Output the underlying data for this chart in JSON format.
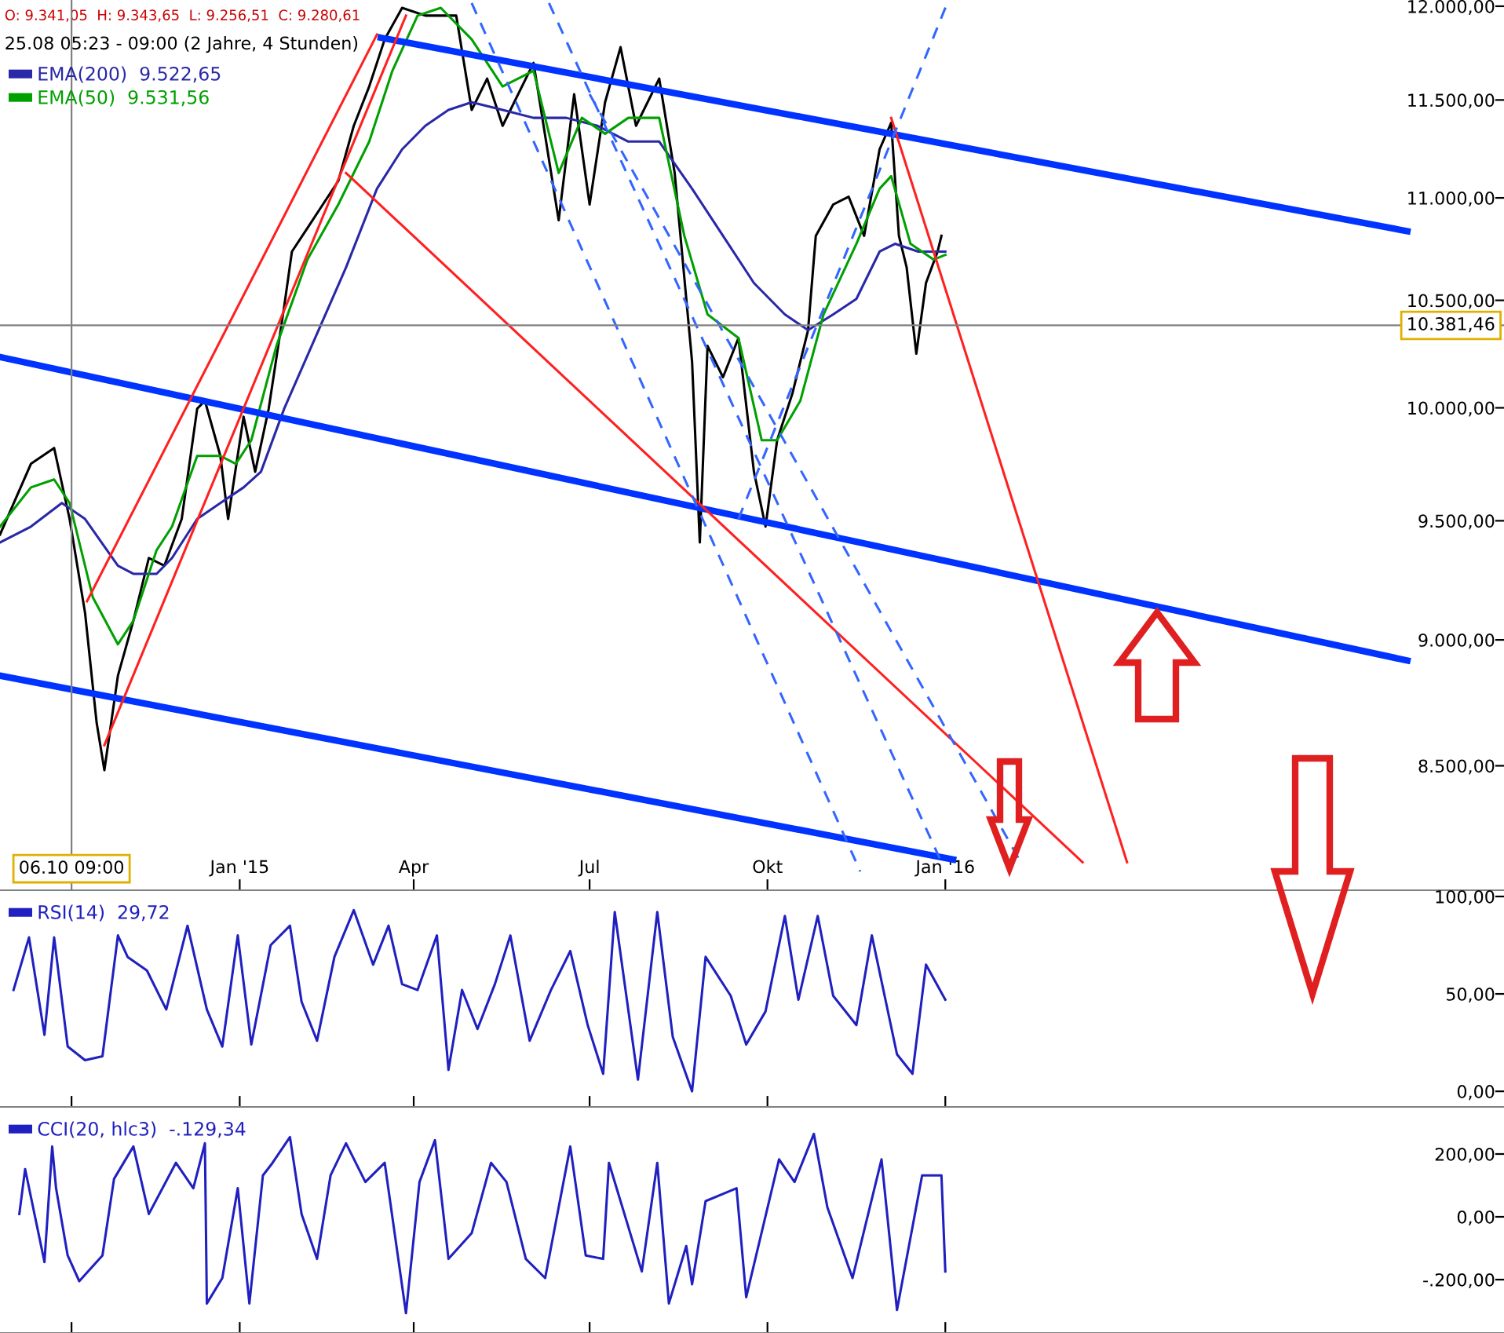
{
  "chart_data": [
    {
      "type": "line",
      "log": true,
      "grid": false,
      "legend": "top left",
      "annotations": [
        "O: 9.341,05  H: 9.343,65  L: 9.256,51  C: 9.280,61",
        "25.08 05:23 - 09:00 (2 Jahre, 4 Stunden)"
      ],
      "xlim": [
        "2014-08-30",
        "2016-10-16"
      ],
      "ylim": [
        8033,
        12034
      ],
      "xticks": [
        {
          "value": "2015-01-01",
          "label": "Jan '15"
        },
        {
          "value": "2015-04-01",
          "label": "Apr"
        },
        {
          "value": "2015-07-01",
          "label": "Jul"
        },
        {
          "value": "2015-10-01",
          "label": "Okt"
        },
        {
          "value": "2016-01-01",
          "label": "Jan '16"
        }
      ],
      "yticks": [
        {
          "value": 8500,
          "label": "8.500,00"
        },
        {
          "value": 9000,
          "label": "9.000,00"
        },
        {
          "value": 9500,
          "label": "9.500,00"
        },
        {
          "value": 10000,
          "label": "10.000,00"
        },
        {
          "value": 10500,
          "label": "10.500,00"
        },
        {
          "value": 11000,
          "label": "11.000,00"
        },
        {
          "value": 11500,
          "label": "11.500,00"
        },
        {
          "value": 12000,
          "label": "12.000,00"
        }
      ],
      "ref_lines": [
        {
          "axis": "y",
          "value": 10381.46,
          "label": "10.381,46",
          "color": "#808080"
        },
        {
          "axis": "x",
          "value": "2014-10-06",
          "label": "06.10 09:00",
          "color": "#808080"
        }
      ],
      "series": [
        {
          "color": "#000000",
          "x": [
            "2014-08-30",
            "2014-09-15",
            "2014-09-27",
            "2014-10-05",
            "2014-10-13",
            "2014-10-19",
            "2014-10-23",
            "2014-10-30",
            "2014-11-07",
            "2014-11-15",
            "2014-11-23",
            "2014-12-02",
            "2014-12-10",
            "2014-12-14",
            "2014-12-22",
            "2014-12-26",
            "2015-01-03",
            "2015-01-09",
            "2015-01-16",
            "2015-01-24",
            "2015-01-28",
            "2015-02-05",
            "2015-02-13",
            "2015-02-21",
            "2015-03-01",
            "2015-03-09",
            "2015-03-17",
            "2015-03-26",
            "2015-04-07",
            "2015-04-23",
            "2015-05-01",
            "2015-05-09",
            "2015-05-17",
            "2015-06-02",
            "2015-06-15",
            "2015-06-23",
            "2015-07-01",
            "2015-07-09",
            "2015-07-17",
            "2015-07-25",
            "2015-08-06",
            "2015-08-14",
            "2015-08-23",
            "2015-08-27",
            "2015-08-31",
            "2015-09-08",
            "2015-09-16",
            "2015-09-24",
            "2015-09-30",
            "2015-10-06",
            "2015-10-14",
            "2015-10-22",
            "2015-10-26",
            "2015-11-04",
            "2015-11-12",
            "2015-11-20",
            "2015-11-28",
            "2015-12-04",
            "2015-12-08",
            "2015-12-12",
            "2015-12-17",
            "2015-12-22",
            "2015-12-28",
            "2015-12-30"
          ],
          "values": [
            9441,
            9749,
            9819,
            9508,
            9111,
            8667,
            8483,
            8855,
            9079,
            9341,
            9308,
            9508,
            9996,
            10032,
            9784,
            9508,
            9960,
            9714,
            9996,
            10470,
            10735,
            10850,
            10967,
            11085,
            11366,
            11571,
            11821,
            11991,
            11949,
            11949,
            11448,
            11612,
            11366,
            11695,
            10889,
            11530,
            10967,
            11488,
            11779,
            11366,
            11612,
            11125,
            10212,
            9407,
            10285,
            10140,
            10322,
            9714,
            9475,
            9854,
            10068,
            10359,
            10812,
            10967,
            11006,
            10812,
            11245,
            11382,
            10812,
            10658,
            10249,
            10583,
            10735,
            10812
          ]
        },
        {
          "name": "EMA(200)  9.522,65",
          "color": "#2828a8",
          "x": [
            "2014-08-30",
            "2014-09-15",
            "2014-10-01",
            "2014-10-13",
            "2014-10-30",
            "2014-11-07",
            "2014-11-19",
            "2014-11-27",
            "2014-12-10",
            "2014-12-22",
            "2015-01-03",
            "2015-01-12",
            "2015-01-24",
            "2015-02-09",
            "2015-02-25",
            "2015-03-13",
            "2015-03-26",
            "2015-04-07",
            "2015-04-19",
            "2015-05-01",
            "2015-05-17",
            "2015-06-02",
            "2015-06-19",
            "2015-07-05",
            "2015-07-21",
            "2015-08-06",
            "2015-08-23",
            "2015-09-08",
            "2015-09-24",
            "2015-10-10",
            "2015-10-22",
            "2015-11-04",
            "2015-11-16",
            "2015-11-28",
            "2015-12-06",
            "2015-12-18",
            "2016-01-01"
          ],
          "values": [
            9407,
            9475,
            9577,
            9508,
            9308,
            9274,
            9274,
            9341,
            9508,
            9577,
            9645,
            9714,
            9996,
            10322,
            10658,
            11046,
            11245,
            11366,
            11448,
            11488,
            11448,
            11407,
            11407,
            11366,
            11285,
            11285,
            11046,
            10812,
            10583,
            10433,
            10359,
            10433,
            10507,
            10735,
            10773,
            10735,
            10735
          ]
        },
        {
          "name": "EMA(50)  9.531,56",
          "color": "#00a000",
          "x": [
            "2014-08-30",
            "2014-09-15",
            "2014-09-27",
            "2014-10-05",
            "2014-10-17",
            "2014-10-30",
            "2014-11-07",
            "2014-11-19",
            "2014-11-27",
            "2014-12-10",
            "2014-12-22",
            "2014-12-30",
            "2015-01-07",
            "2015-01-20",
            "2015-02-05",
            "2015-02-21",
            "2015-03-09",
            "2015-03-21",
            "2015-04-03",
            "2015-04-15",
            "2015-05-01",
            "2015-05-17",
            "2015-06-02",
            "2015-06-15",
            "2015-06-27",
            "2015-07-09",
            "2015-07-21",
            "2015-08-06",
            "2015-08-19",
            "2015-08-31",
            "2015-09-16",
            "2015-09-28",
            "2015-10-06",
            "2015-10-18",
            "2015-10-30",
            "2015-11-16",
            "2015-11-28",
            "2015-12-04",
            "2015-12-14",
            "2015-12-26",
            "2016-01-01"
          ],
          "values": [
            9475,
            9645,
            9680,
            9577,
            9176,
            8982,
            9079,
            9374,
            9475,
            9784,
            9784,
            9749,
            9854,
            10285,
            10696,
            10967,
            11285,
            11654,
            11949,
            11991,
            11821,
            11571,
            11654,
            11125,
            11407,
            11325,
            11407,
            11407,
            10812,
            10433,
            10322,
            9854,
            9854,
            10032,
            10433,
            10773,
            11046,
            11109,
            10773,
            10696,
            10719
          ]
        },
        {
          "color": "#0033ff",
          "x": [
            "2015-03-15",
            "2016-08-27"
          ],
          "values": [
            11830,
            10835
          ]
        },
        {
          "color": "#0033ff",
          "x": [
            "2014-08-30",
            "2016-08-27"
          ],
          "values": [
            10233,
            8916
          ]
        },
        {
          "color": "#0033ff",
          "x": [
            "2014-08-30",
            "2016-01-05"
          ],
          "values": [
            8855,
            8146
          ]
        },
        {
          "color": "#ff2020",
          "x": [
            "2014-10-23",
            "2015-03-28"
          ],
          "values": [
            8580,
            11949
          ]
        },
        {
          "color": "#ff2020",
          "x": [
            "2014-10-14",
            "2015-03-13"
          ],
          "values": [
            9159,
            11847
          ]
        },
        {
          "color": "#ff2020",
          "x": [
            "2015-02-25",
            "2016-03-12"
          ],
          "values": [
            11125,
            8136
          ]
        },
        {
          "color": "#ff2020",
          "x": [
            "2015-12-04",
            "2016-04-04"
          ],
          "values": [
            11407,
            8136
          ]
        },
        {
          "color": "#3366ff",
          "line_style": "dashed",
          "x": [
            "2015-05-01",
            "2015-11-18"
          ],
          "values": [
            12017,
            8102
          ]
        },
        {
          "color": "#3366ff",
          "line_style": "dashed",
          "x": [
            "2015-06-10",
            "2015-12-30"
          ],
          "values": [
            12017,
            8136
          ]
        },
        {
          "color": "#3366ff",
          "line_style": "dashed",
          "x": [
            "2015-07-01",
            "2016-02-09"
          ],
          "values": [
            11530,
            8136
          ]
        },
        {
          "color": "#3366ff",
          "line_style": "dashed",
          "x": [
            "2015-09-16",
            "2016-01-02"
          ],
          "values": [
            9508,
            12017
          ]
        }
      ]
    },
    {
      "type": "line",
      "grid": false,
      "legend": "top left",
      "tick_labels": "y",
      "xlim": [
        "2014-08-30",
        "2016-10-16"
      ],
      "ylim": [
        -8,
        102.4
      ],
      "xticks": [
        {
          "value": "2014-10-06",
          "label": null
        },
        {
          "value": "2015-01-01",
          "label": null
        },
        {
          "value": "2015-04-01",
          "label": null
        },
        {
          "value": "2015-07-01",
          "label": null
        },
        {
          "value": "2015-10-01",
          "label": null
        },
        {
          "value": "2016-01-01",
          "label": null
        }
      ],
      "yticks": [
        {
          "value": 0,
          "label": "0,00"
        },
        {
          "value": 50,
          "label": "50,00"
        },
        {
          "value": 100,
          "label": "100,00"
        }
      ],
      "series": [
        {
          "name": "RSI(14)  29,72",
          "color": "#2020c0",
          "x": [
            "2014-09-06",
            "2014-09-14",
            "2014-09-22",
            "2014-09-27",
            "2014-10-04",
            "2014-10-13",
            "2014-10-22",
            "2014-10-30",
            "2014-11-04",
            "2014-11-14",
            "2014-11-24",
            "2014-12-05",
            "2014-12-15",
            "2014-12-23",
            "2014-12-31",
            "2015-01-07",
            "2015-01-17",
            "2015-01-27",
            "2015-02-02",
            "2015-02-10",
            "2015-02-19",
            "2015-03-01",
            "2015-03-11",
            "2015-03-19",
            "2015-03-26",
            "2015-04-03",
            "2015-04-13",
            "2015-04-19",
            "2015-04-26",
            "2015-05-04",
            "2015-05-13",
            "2015-05-21",
            "2015-05-31",
            "2015-06-11",
            "2015-06-21",
            "2015-06-30",
            "2015-07-08",
            "2015-07-14",
            "2015-07-26",
            "2015-08-05",
            "2015-08-13",
            "2015-08-23",
            "2015-08-30",
            "2015-09-12",
            "2015-09-20",
            "2015-09-30",
            "2015-10-10",
            "2015-10-17",
            "2015-10-27",
            "2015-11-04",
            "2015-11-16",
            "2015-11-24",
            "2015-12-07",
            "2015-12-15",
            "2015-12-22",
            "2016-01-01"
          ],
          "values": [
            52,
            79,
            29,
            79,
            23,
            16,
            18,
            80,
            69,
            62,
            42,
            85,
            42,
            23,
            80,
            24,
            75,
            85,
            46,
            26,
            69,
            93,
            65,
            85,
            55,
            52,
            80,
            11,
            52,
            32,
            55,
            80,
            26,
            52,
            72,
            34,
            9,
            92,
            6,
            92,
            28,
            0,
            69,
            49,
            24,
            41,
            90,
            47,
            90,
            49,
            34,
            80,
            19,
            9,
            65,
            47
          ]
        }
      ]
    },
    {
      "type": "line",
      "grid": false,
      "legend": "top left",
      "tick_labels": "y",
      "xlim": [
        "2014-08-30",
        "2016-10-16"
      ],
      "ylim": [
        -370,
        345
      ],
      "xticks": [
        {
          "value": "2014-10-06",
          "label": null
        },
        {
          "value": "2015-01-01",
          "label": null
        },
        {
          "value": "2015-04-01",
          "label": null
        },
        {
          "value": "2015-07-01",
          "label": null
        },
        {
          "value": "2015-10-01",
          "label": null
        },
        {
          "value": "2016-01-01",
          "label": null
        }
      ],
      "yticks": [
        {
          "value": -200,
          "label": "-.200,00"
        },
        {
          "value": 0,
          "label": "0,00"
        },
        {
          "value": 200,
          "label": "200,00"
        }
      ],
      "series": [
        {
          "name": "CCI(20, hlc3)  -.129,34",
          "color": "#2020c0",
          "x": [
            "2014-09-09",
            "2014-09-12",
            "2014-09-22",
            "2014-09-26",
            "2014-09-28",
            "2014-10-04",
            "2014-10-10",
            "2014-10-22",
            "2014-10-28",
            "2014-11-07",
            "2014-11-15",
            "2014-11-29",
            "2014-12-08",
            "2014-12-14",
            "2014-12-15",
            "2014-12-23",
            "2014-12-31",
            "2015-01-06",
            "2015-01-13",
            "2015-01-18",
            "2015-01-27",
            "2015-02-02",
            "2015-02-10",
            "2015-02-17",
            "2015-02-25",
            "2015-03-07",
            "2015-03-17",
            "2015-03-28",
            "2015-04-04",
            "2015-04-12",
            "2015-04-19",
            "2015-05-01",
            "2015-05-11",
            "2015-05-19",
            "2015-05-29",
            "2015-06-08",
            "2015-06-21",
            "2015-06-29",
            "2015-07-08",
            "2015-07-11",
            "2015-07-28",
            "2015-08-05",
            "2015-08-11",
            "2015-08-20",
            "2015-08-23",
            "2015-08-30",
            "2015-09-15",
            "2015-09-20",
            "2015-10-07",
            "2015-10-15",
            "2015-10-25",
            "2015-11-01",
            "2015-11-14",
            "2015-11-29",
            "2015-12-07",
            "2015-12-20",
            "2015-12-30",
            "2016-01-01"
          ],
          "values": [
            9,
            152,
            -144,
            224,
            91,
            -123,
            -205,
            -123,
            121,
            224,
            9,
            172,
            91,
            234,
            -276,
            -195,
            91,
            -276,
            132,
            172,
            254,
            9,
            -134,
            132,
            234,
            111,
            172,
            -307,
            111,
            244,
            -134,
            -52,
            172,
            111,
            -134,
            -195,
            224,
            -123,
            -134,
            172,
            -174,
            172,
            -276,
            -93,
            -215,
            50,
            91,
            -256,
            183,
            111,
            264,
            30,
            -195,
            183,
            -297,
            132,
            132,
            -174
          ]
        }
      ]
    }
  ]
}
